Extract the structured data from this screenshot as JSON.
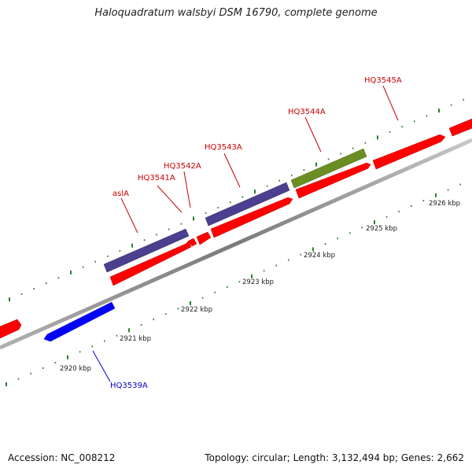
{
  "title": "Haloquadratum walsbyi DSM 16790, complete genome",
  "footer": {
    "accession": "Accession: NC_008212",
    "summary": "Topology: circular; Length: 3,132,494 bp; Genes: 2,662"
  },
  "colors": {
    "background": "#ffffff",
    "backbone": "#8a8a8a",
    "ticks": "#2e7d32",
    "forward_gene": "#ff0000",
    "rna_purple": "#4b3f8f",
    "rna_olive": "#6b8e23",
    "reverse_gene": "#0000ff",
    "label_red": "#cc0000",
    "label_blue": "#0000cc"
  },
  "ruler": {
    "unit": "kbp",
    "labels": [
      "2920 kbp",
      "2921 kbp",
      "2922 kbp",
      "2923 kbp",
      "2924 kbp",
      "2925 kbp",
      "2926 kbp"
    ]
  },
  "gene_labels": [
    {
      "id": "aslA",
      "text": "aslA",
      "color": "#cc0000"
    },
    {
      "id": "HQ3541A",
      "text": "HQ3541A",
      "color": "#cc0000"
    },
    {
      "id": "HQ3542A",
      "text": "HQ3542A",
      "color": "#cc0000"
    },
    {
      "id": "HQ3543A",
      "text": "HQ3543A",
      "color": "#cc0000"
    },
    {
      "id": "HQ3544A",
      "text": "HQ3544A",
      "color": "#cc0000"
    },
    {
      "id": "HQ3545A",
      "text": "HQ3545A",
      "color": "#cc0000"
    },
    {
      "id": "HQ3539A",
      "text": "HQ3539A",
      "color": "#0000cc"
    }
  ]
}
